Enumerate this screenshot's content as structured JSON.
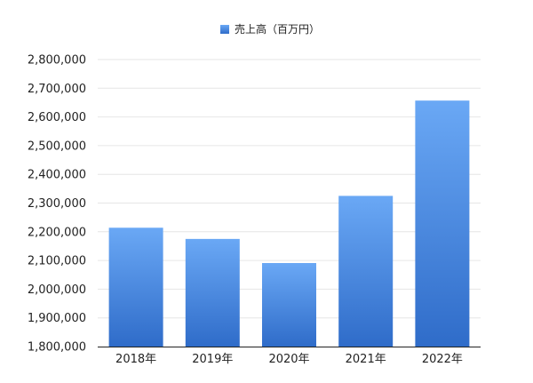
{
  "chart_data": {
    "type": "bar",
    "legend": {
      "placement": "top-center",
      "label": "売上高（百万円）"
    },
    "categories": [
      "2018年",
      "2019年",
      "2020年",
      "2021年",
      "2022年"
    ],
    "series": [
      {
        "name": "売上高（百万円）",
        "values": [
          2214000,
          2175000,
          2091000,
          2325000,
          2657000
        ]
      }
    ],
    "ylim": [
      1800000,
      2800000
    ],
    "yticks": [
      1800000,
      1900000,
      2000000,
      2100000,
      2200000,
      2300000,
      2400000,
      2500000,
      2600000,
      2700000,
      2800000
    ],
    "ytick_labels": [
      "1,800,000",
      "1,900,000",
      "2,000,000",
      "2,100,000",
      "2,200,000",
      "2,300,000",
      "2,400,000",
      "2,500,000",
      "2,600,000",
      "2,700,000",
      "2,800,000"
    ],
    "grid": true,
    "colors": {
      "bar_top": "#6aa8f5",
      "bar_bottom": "#2f6cc9",
      "grid": "#e6e6e6",
      "axis": "#222222"
    }
  }
}
